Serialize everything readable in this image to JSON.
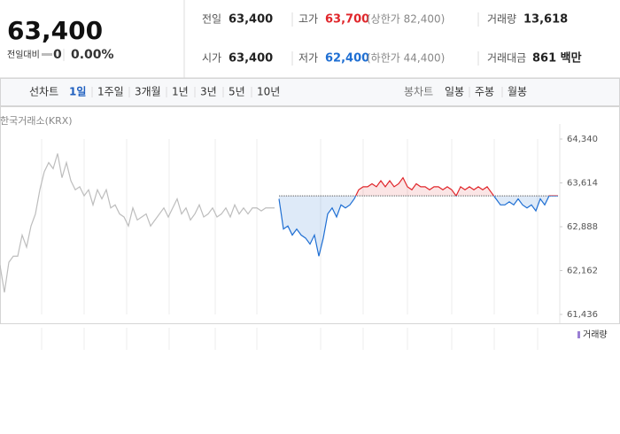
{
  "header": {
    "price": "63,400",
    "change_label": "전일대비",
    "change": "0",
    "rate": "0.00%"
  },
  "stats": [
    {
      "label": "전일",
      "value": "63,400"
    },
    {
      "label": "고가",
      "value": "63,700",
      "note": "(상한가 82,400)"
    },
    {
      "label": "거래량",
      "value": "13,618"
    },
    {
      "label": "시가",
      "value": "63,400"
    },
    {
      "label": "저가",
      "value": "62,400",
      "note": "(하한가 44,400)"
    },
    {
      "label": "거래대금",
      "value": "861 백만"
    }
  ],
  "tabs": {
    "line_label": "선차트",
    "periods": [
      "1일",
      "1주일",
      "3개월",
      "1년",
      "3년",
      "5년",
      "10년"
    ],
    "candle_label": "봉차트",
    "candles": [
      "일봉",
      "주봉",
      "월봉"
    ]
  },
  "chart_data": {
    "type": "line",
    "source": "한국거래소(KRX)",
    "legend": "거래량",
    "baseline": 63400,
    "ylim": [
      61436,
      64340
    ],
    "yticks": [
      {
        "value": 61436,
        "label": "61,436"
      },
      {
        "value": 62162,
        "label": "62,162"
      },
      {
        "value": 62888,
        "label": "62,888"
      },
      {
        "value": 63614,
        "label": "63,614"
      },
      {
        "value": 64340,
        "label": "64,340"
      }
    ],
    "series": [
      {
        "color": "#bdbdbd",
        "values": [
          62250,
          61800,
          62300,
          62400,
          62400,
          62750,
          62550,
          62900,
          63100,
          63500,
          63800,
          63950,
          63850,
          64100,
          63700,
          63950,
          63650,
          63500,
          63550,
          63400,
          63500,
          63250,
          63500,
          63350,
          63500,
          63200,
          63250,
          63100,
          63050,
          62900,
          63200,
          63000,
          63050,
          63100,
          62900,
          63000,
          63100,
          63200,
          63050,
          63200,
          63350,
          63100,
          63200,
          63000,
          63100,
          63250,
          63050,
          63100,
          63200,
          63050,
          63100,
          63200,
          63050,
          63250,
          63100,
          63200,
          63100,
          63200,
          63200,
          63150,
          63200,
          63200,
          63200,
          null,
          null,
          null,
          null,
          null,
          null,
          null,
          null,
          null,
          null,
          null,
          null,
          null,
          null,
          null,
          null,
          null,
          null,
          null,
          null,
          null,
          null,
          null,
          null,
          null,
          null,
          null,
          null,
          null,
          null,
          null,
          null,
          null,
          null,
          null,
          null,
          null,
          null,
          null,
          null,
          null,
          null,
          null,
          null,
          null,
          null,
          null,
          null,
          null,
          null,
          null,
          null,
          null,
          null,
          null,
          null,
          null,
          null,
          null,
          null,
          null,
          null,
          null
        ]
      },
      {
        "color": "#e0262b",
        "down_color": "#1f6fd3",
        "values": [
          null,
          null,
          null,
          null,
          null,
          null,
          null,
          null,
          null,
          null,
          null,
          null,
          null,
          null,
          null,
          null,
          null,
          null,
          null,
          null,
          null,
          null,
          null,
          null,
          null,
          null,
          null,
          null,
          null,
          null,
          null,
          null,
          null,
          null,
          null,
          null,
          null,
          null,
          null,
          null,
          null,
          null,
          null,
          null,
          null,
          null,
          null,
          null,
          null,
          null,
          null,
          null,
          null,
          null,
          null,
          null,
          null,
          null,
          null,
          null,
          null,
          null,
          null,
          63350,
          62850,
          62900,
          62750,
          62850,
          62750,
          62700,
          62600,
          62750,
          62400,
          62700,
          63100,
          63200,
          63050,
          63250,
          63200,
          63250,
          63350,
          63500,
          63550,
          63550,
          63600,
          63550,
          63650,
          63550,
          63650,
          63550,
          63600,
          63700,
          63550,
          63500,
          63600,
          63550,
          63550,
          63500,
          63550,
          63550,
          63500,
          63550,
          63500,
          63400,
          63550,
          63500,
          63550,
          63500,
          63550,
          63500,
          63550,
          63450,
          63350,
          63250,
          63250,
          63300,
          63250,
          63350,
          63250,
          63200,
          63250,
          63150,
          63350,
          63250,
          63400,
          63400,
          63400
        ]
      }
    ]
  }
}
